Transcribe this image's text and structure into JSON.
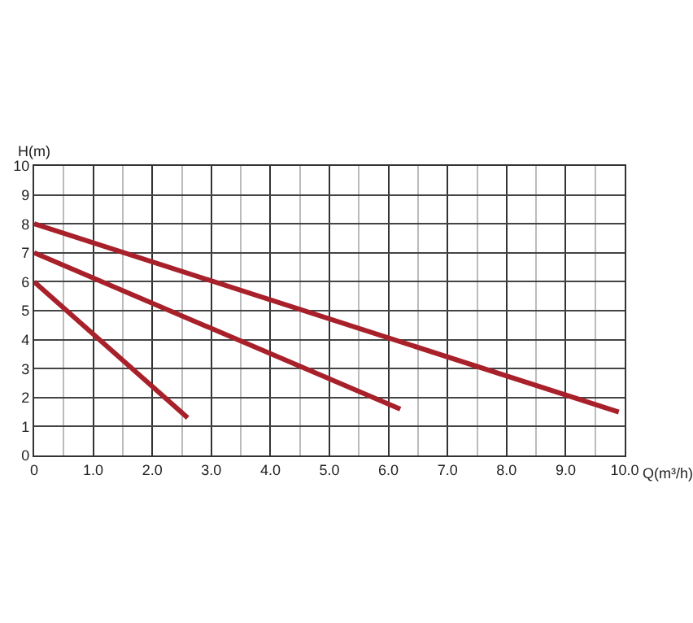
{
  "chart_data": {
    "type": "line",
    "xlabel": "Q(m³/h)",
    "ylabel": "H(m)",
    "series": [
      {
        "color": "#a8202a",
        "x": [
          0,
          2.6
        ],
        "values": [
          6,
          1.3
        ]
      },
      {
        "color": "#a8202a",
        "x": [
          0,
          6.2
        ],
        "values": [
          7,
          1.6
        ]
      },
      {
        "color": "#a8202a",
        "x": [
          0,
          9.9
        ],
        "values": [
          8,
          1.5
        ]
      }
    ],
    "xlim": [
      0,
      10
    ],
    "xticks": [
      0,
      {
        "value": 1,
        "label": "1.0"
      },
      {
        "value": 2,
        "label": "2.0"
      },
      {
        "value": 3,
        "label": "3.0"
      },
      {
        "value": 4,
        "label": "4.0"
      },
      {
        "value": 5,
        "label": "5.0"
      },
      {
        "value": 6,
        "label": "6.0"
      },
      {
        "value": 7,
        "label": "7.0"
      },
      {
        "value": 8,
        "label": "8.0"
      },
      {
        "value": 9,
        "label": "9.0"
      },
      {
        "value": 10,
        "label": "10.0"
      }
    ],
    "ylim": [
      0,
      10
    ],
    "yticks": [
      0,
      1,
      2,
      3,
      4,
      5,
      6,
      7,
      8,
      9,
      10
    ],
    "grid": true,
    "marker": "none",
    "line_style": "solid"
  }
}
